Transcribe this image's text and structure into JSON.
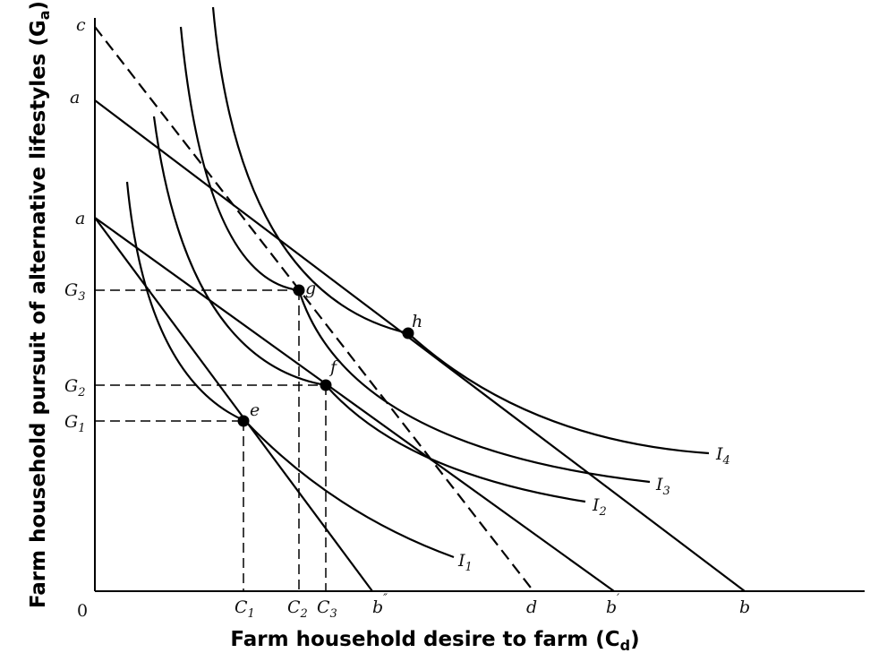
{
  "axes": {
    "x_title_main": "Farm household desire to farm (C",
    "x_title_sub": "d",
    "x_title_end": ")",
    "y_title_main": "Farm household pursuit of alternative lifestyles (G",
    "y_title_sub": "a",
    "y_title_end": ")",
    "origin": "0"
  },
  "y_labels": {
    "c": "c",
    "a_upper": "a",
    "a_lower": "a",
    "G3": "G",
    "G3_sub": "3",
    "G2": "G",
    "G2_sub": "2",
    "G1": "G",
    "G1_sub": "1"
  },
  "x_labels": {
    "C1": "C",
    "C1_sub": "1",
    "C2": "C",
    "C2_sub": "2",
    "C3": "C",
    "C3_sub": "3",
    "b_dprime": "b",
    "b_dprime_mark": "″",
    "d": "d",
    "b_prime": "b",
    "b_prime_mark": "′",
    "b": "b"
  },
  "points": {
    "e": "e",
    "f": "f",
    "g": "g",
    "h": "h"
  },
  "curves": {
    "I1": "I",
    "I1_sub": "1",
    "I2": "I",
    "I2_sub": "2",
    "I3": "I",
    "I3_sub": "3",
    "I4": "I",
    "I4_sub": "4"
  }
}
